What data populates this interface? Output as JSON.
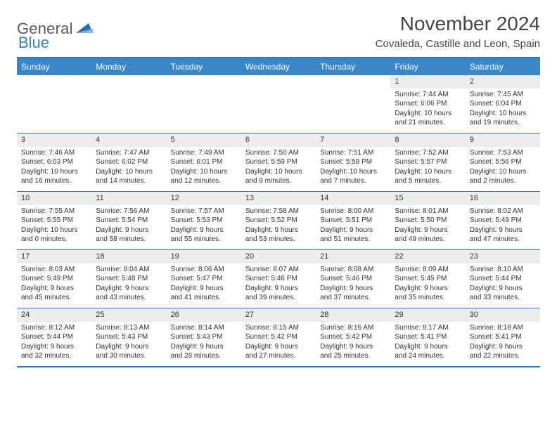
{
  "brand": {
    "word1": "General",
    "word2": "Blue"
  },
  "title": "November 2024",
  "location": "Covaleda, Castille and Leon, Spain",
  "colors": {
    "header_bg": "#3a86c8",
    "border": "#2e76b6",
    "daynum_bg": "#ededed",
    "text": "#333333"
  },
  "dow": [
    "Sunday",
    "Monday",
    "Tuesday",
    "Wednesday",
    "Thursday",
    "Friday",
    "Saturday"
  ],
  "weeks": [
    [
      {
        "n": "",
        "sr": "",
        "ss": "",
        "dl": ""
      },
      {
        "n": "",
        "sr": "",
        "ss": "",
        "dl": ""
      },
      {
        "n": "",
        "sr": "",
        "ss": "",
        "dl": ""
      },
      {
        "n": "",
        "sr": "",
        "ss": "",
        "dl": ""
      },
      {
        "n": "",
        "sr": "",
        "ss": "",
        "dl": ""
      },
      {
        "n": "1",
        "sr": "Sunrise: 7:44 AM",
        "ss": "Sunset: 6:06 PM",
        "dl": "Daylight: 10 hours and 21 minutes."
      },
      {
        "n": "2",
        "sr": "Sunrise: 7:45 AM",
        "ss": "Sunset: 6:04 PM",
        "dl": "Daylight: 10 hours and 19 minutes."
      }
    ],
    [
      {
        "n": "3",
        "sr": "Sunrise: 7:46 AM",
        "ss": "Sunset: 6:03 PM",
        "dl": "Daylight: 10 hours and 16 minutes."
      },
      {
        "n": "4",
        "sr": "Sunrise: 7:47 AM",
        "ss": "Sunset: 6:02 PM",
        "dl": "Daylight: 10 hours and 14 minutes."
      },
      {
        "n": "5",
        "sr": "Sunrise: 7:49 AM",
        "ss": "Sunset: 6:01 PM",
        "dl": "Daylight: 10 hours and 12 minutes."
      },
      {
        "n": "6",
        "sr": "Sunrise: 7:50 AM",
        "ss": "Sunset: 5:59 PM",
        "dl": "Daylight: 10 hours and 9 minutes."
      },
      {
        "n": "7",
        "sr": "Sunrise: 7:51 AM",
        "ss": "Sunset: 5:58 PM",
        "dl": "Daylight: 10 hours and 7 minutes."
      },
      {
        "n": "8",
        "sr": "Sunrise: 7:52 AM",
        "ss": "Sunset: 5:57 PM",
        "dl": "Daylight: 10 hours and 5 minutes."
      },
      {
        "n": "9",
        "sr": "Sunrise: 7:53 AM",
        "ss": "Sunset: 5:56 PM",
        "dl": "Daylight: 10 hours and 2 minutes."
      }
    ],
    [
      {
        "n": "10",
        "sr": "Sunrise: 7:55 AM",
        "ss": "Sunset: 5:55 PM",
        "dl": "Daylight: 10 hours and 0 minutes."
      },
      {
        "n": "11",
        "sr": "Sunrise: 7:56 AM",
        "ss": "Sunset: 5:54 PM",
        "dl": "Daylight: 9 hours and 58 minutes."
      },
      {
        "n": "12",
        "sr": "Sunrise: 7:57 AM",
        "ss": "Sunset: 5:53 PM",
        "dl": "Daylight: 9 hours and 55 minutes."
      },
      {
        "n": "13",
        "sr": "Sunrise: 7:58 AM",
        "ss": "Sunset: 5:52 PM",
        "dl": "Daylight: 9 hours and 53 minutes."
      },
      {
        "n": "14",
        "sr": "Sunrise: 8:00 AM",
        "ss": "Sunset: 5:51 PM",
        "dl": "Daylight: 9 hours and 51 minutes."
      },
      {
        "n": "15",
        "sr": "Sunrise: 8:01 AM",
        "ss": "Sunset: 5:50 PM",
        "dl": "Daylight: 9 hours and 49 minutes."
      },
      {
        "n": "16",
        "sr": "Sunrise: 8:02 AM",
        "ss": "Sunset: 5:49 PM",
        "dl": "Daylight: 9 hours and 47 minutes."
      }
    ],
    [
      {
        "n": "17",
        "sr": "Sunrise: 8:03 AM",
        "ss": "Sunset: 5:49 PM",
        "dl": "Daylight: 9 hours and 45 minutes."
      },
      {
        "n": "18",
        "sr": "Sunrise: 8:04 AM",
        "ss": "Sunset: 5:48 PM",
        "dl": "Daylight: 9 hours and 43 minutes."
      },
      {
        "n": "19",
        "sr": "Sunrise: 8:06 AM",
        "ss": "Sunset: 5:47 PM",
        "dl": "Daylight: 9 hours and 41 minutes."
      },
      {
        "n": "20",
        "sr": "Sunrise: 8:07 AM",
        "ss": "Sunset: 5:46 PM",
        "dl": "Daylight: 9 hours and 39 minutes."
      },
      {
        "n": "21",
        "sr": "Sunrise: 8:08 AM",
        "ss": "Sunset: 5:46 PM",
        "dl": "Daylight: 9 hours and 37 minutes."
      },
      {
        "n": "22",
        "sr": "Sunrise: 8:09 AM",
        "ss": "Sunset: 5:45 PM",
        "dl": "Daylight: 9 hours and 35 minutes."
      },
      {
        "n": "23",
        "sr": "Sunrise: 8:10 AM",
        "ss": "Sunset: 5:44 PM",
        "dl": "Daylight: 9 hours and 33 minutes."
      }
    ],
    [
      {
        "n": "24",
        "sr": "Sunrise: 8:12 AM",
        "ss": "Sunset: 5:44 PM",
        "dl": "Daylight: 9 hours and 32 minutes."
      },
      {
        "n": "25",
        "sr": "Sunrise: 8:13 AM",
        "ss": "Sunset: 5:43 PM",
        "dl": "Daylight: 9 hours and 30 minutes."
      },
      {
        "n": "26",
        "sr": "Sunrise: 8:14 AM",
        "ss": "Sunset: 5:43 PM",
        "dl": "Daylight: 9 hours and 28 minutes."
      },
      {
        "n": "27",
        "sr": "Sunrise: 8:15 AM",
        "ss": "Sunset: 5:42 PM",
        "dl": "Daylight: 9 hours and 27 minutes."
      },
      {
        "n": "28",
        "sr": "Sunrise: 8:16 AM",
        "ss": "Sunset: 5:42 PM",
        "dl": "Daylight: 9 hours and 25 minutes."
      },
      {
        "n": "29",
        "sr": "Sunrise: 8:17 AM",
        "ss": "Sunset: 5:41 PM",
        "dl": "Daylight: 9 hours and 24 minutes."
      },
      {
        "n": "30",
        "sr": "Sunrise: 8:18 AM",
        "ss": "Sunset: 5:41 PM",
        "dl": "Daylight: 9 hours and 22 minutes."
      }
    ]
  ]
}
